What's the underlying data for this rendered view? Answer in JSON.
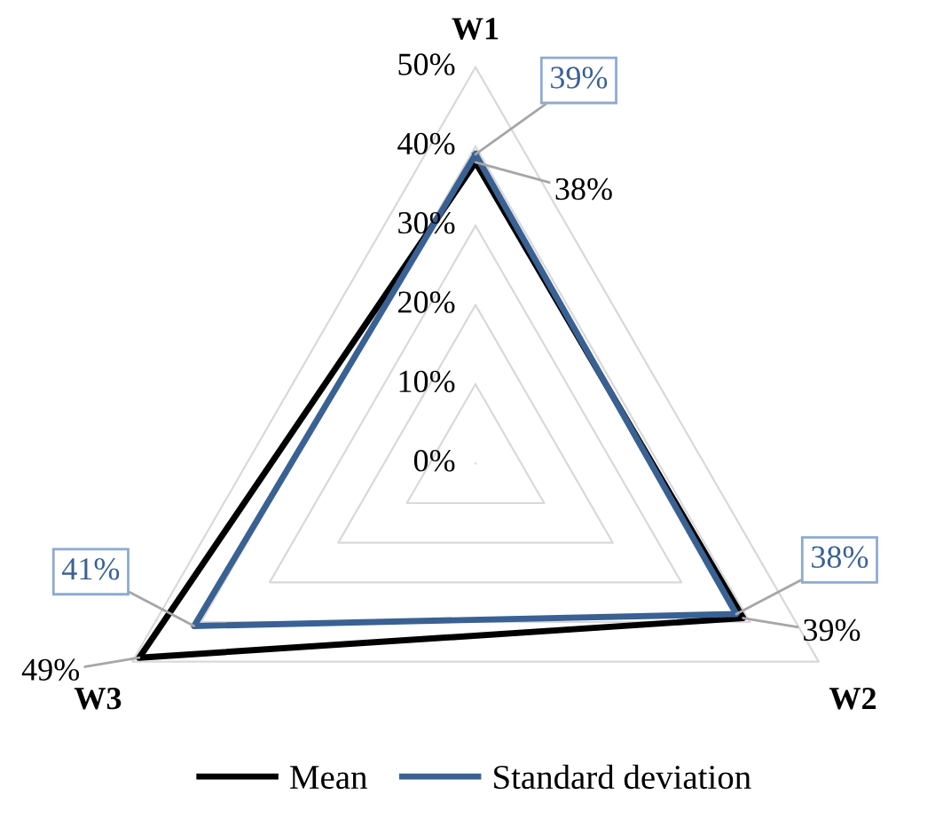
{
  "chart_data": {
    "type": "radar",
    "categories": [
      "W1",
      "W2",
      "W3"
    ],
    "series": [
      {
        "name": "Mean",
        "color": "#000000",
        "values": [
          38,
          39,
          49
        ],
        "value_labels": [
          "38%",
          "39%",
          "49%"
        ]
      },
      {
        "name": "Standard deviation",
        "color": "#3a6193",
        "values": [
          39,
          38,
          41
        ],
        "value_labels": [
          "39%",
          "38%",
          "41%"
        ]
      }
    ],
    "ylim": [
      0,
      50
    ],
    "yticks": [
      {
        "value": 0,
        "label": "0%"
      },
      {
        "value": 10,
        "label": "10%"
      },
      {
        "value": 20,
        "label": "20%"
      },
      {
        "value": 30,
        "label": "30%"
      },
      {
        "value": 40,
        "label": "40%"
      },
      {
        "value": 50,
        "label": "50%"
      }
    ],
    "grid": true,
    "legend": "bottom",
    "marker": "none",
    "line_style": "solid"
  }
}
